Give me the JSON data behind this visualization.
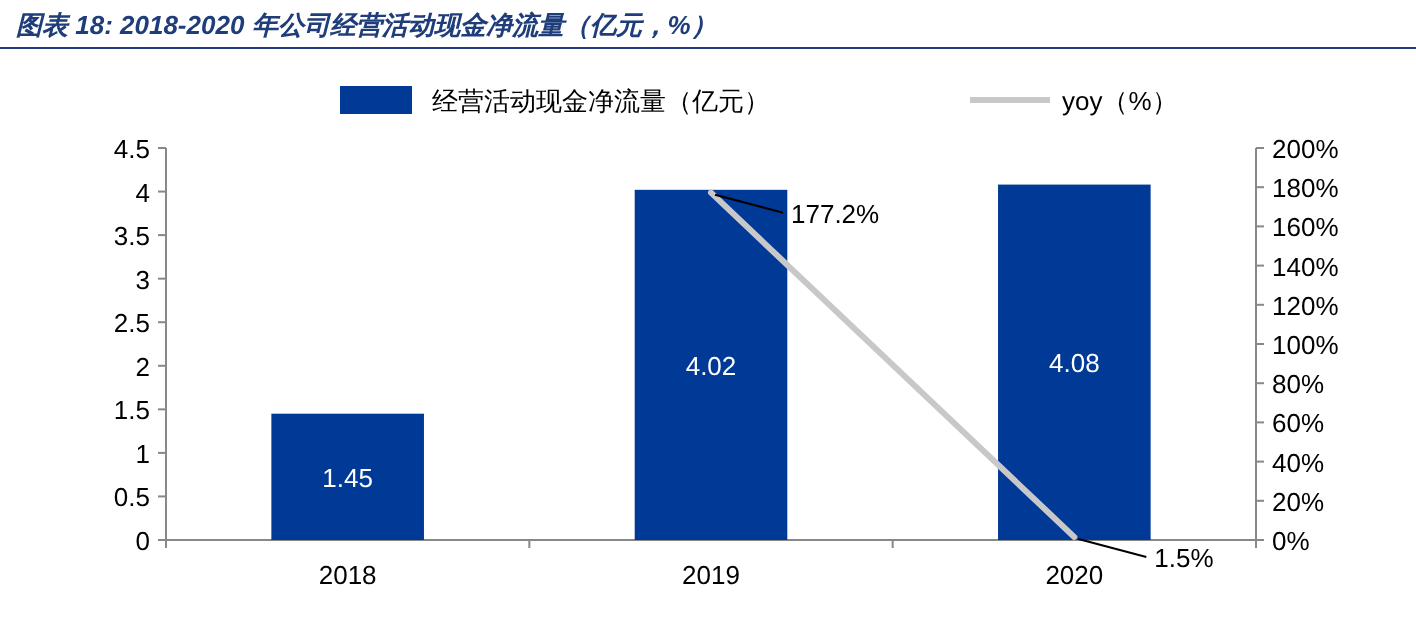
{
  "chart_data": {
    "type": "bar",
    "title": "图表 18: 2018-2020 年公司经营活动现金净流量（亿元，%）",
    "categories": [
      "2018",
      "2019",
      "2020"
    ],
    "series": [
      {
        "name": "经营活动现金净流量（亿元）",
        "color": "#003a96",
        "values": [
          1.45,
          4.02,
          4.08
        ],
        "value_labels": [
          "1.45",
          "4.02",
          "4.08"
        ]
      },
      {
        "name": "yoy（%）",
        "type": "line",
        "axis": "y2",
        "color": "#c8c8c8",
        "values": [
          null,
          177.2,
          1.5
        ],
        "value_labels": [
          null,
          "177.2%",
          "1.5%"
        ]
      }
    ],
    "ylim": [
      0,
      4.5
    ],
    "yticks": [
      0,
      0.5,
      1,
      1.5,
      2,
      2.5,
      3,
      3.5,
      4,
      4.5
    ],
    "y2lim": [
      0,
      200
    ],
    "y2ticks": [
      {
        "value": 0,
        "label": "0%"
      },
      {
        "value": 20,
        "label": "20%"
      },
      {
        "value": 40,
        "label": "40%"
      },
      {
        "value": 60,
        "label": "60%"
      },
      {
        "value": 80,
        "label": "80%"
      },
      {
        "value": 100,
        "label": "100%"
      },
      {
        "value": 120,
        "label": "120%"
      },
      {
        "value": 140,
        "label": "140%"
      },
      {
        "value": 160,
        "label": "160%"
      },
      {
        "value": 180,
        "label": "180%"
      },
      {
        "value": 200,
        "label": "200%"
      }
    ],
    "legend": "top",
    "marker": "none",
    "line_style": "solid"
  }
}
